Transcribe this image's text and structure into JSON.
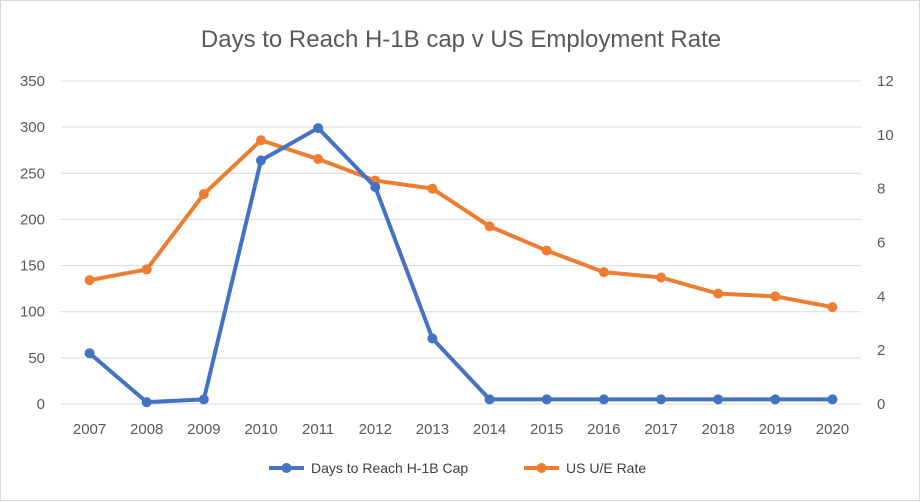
{
  "chart_data": {
    "type": "line",
    "title": "Days to Reach  H-1B cap v US Employment Rate",
    "categories": [
      "2007",
      "2008",
      "2009",
      "2010",
      "2011",
      "2012",
      "2013",
      "2014",
      "2015",
      "2016",
      "2017",
      "2018",
      "2019",
      "2020"
    ],
    "series": [
      {
        "name": "Days to Reach H-1B Cap",
        "axis": "left",
        "color": "#4472C4",
        "values": [
          55,
          2,
          5,
          264,
          299,
          235,
          71,
          5,
          5,
          5,
          5,
          5,
          5,
          5
        ]
      },
      {
        "name": "US U/E Rate",
        "axis": "right",
        "color": "#ED7D31",
        "values": [
          4.6,
          5.0,
          7.8,
          9.8,
          9.1,
          8.3,
          8.0,
          6.6,
          5.7,
          4.9,
          4.7,
          4.1,
          4.0,
          3.6
        ]
      }
    ],
    "y_left": {
      "ylim": [
        0,
        350
      ],
      "ticks": [
        "0",
        "50",
        "100",
        "150",
        "200",
        "250",
        "300",
        "350"
      ]
    },
    "y_right": {
      "ylim": [
        0,
        12
      ],
      "ticks": [
        "0",
        "2",
        "4",
        "6",
        "8",
        "10",
        "12"
      ]
    },
    "grid": true,
    "legend": "bottom",
    "colors": {
      "grid": "#d9d9d9",
      "text": "#595959"
    }
  }
}
